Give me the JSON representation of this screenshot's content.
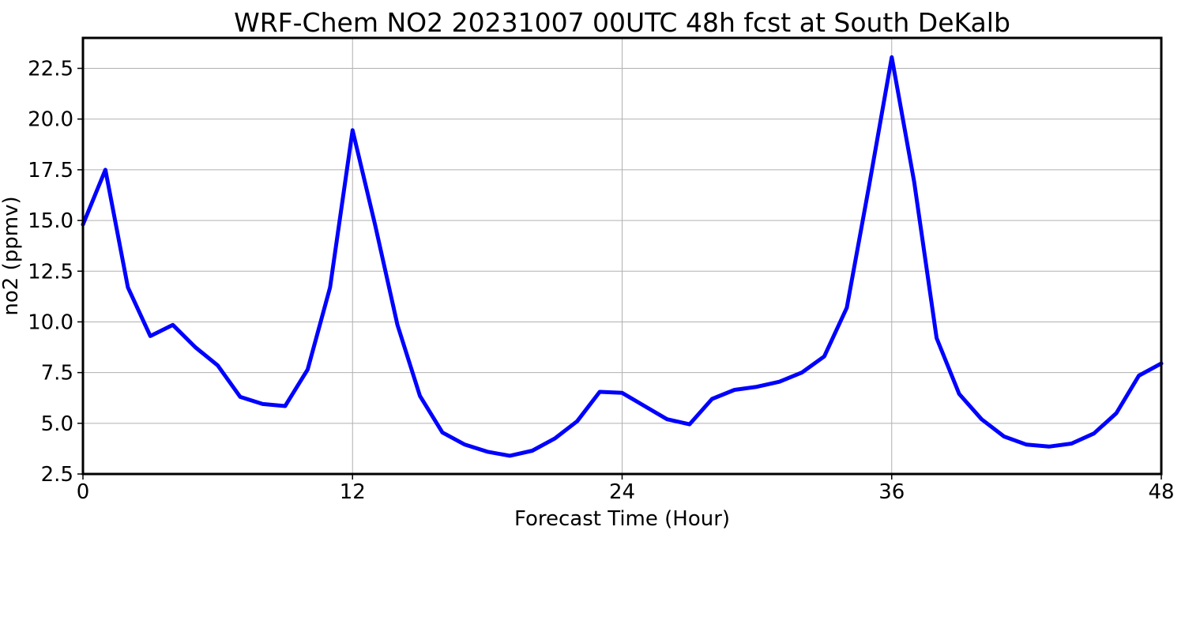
{
  "chart_data": {
    "type": "line",
    "title": "WRF-Chem NO2  20231007 00UTC 48h fcst at South DeKalb",
    "xlabel": "Forecast Time (Hour)",
    "ylabel": "no2  (ppmv)",
    "xlim": [
      0,
      48
    ],
    "ylim": [
      2.5,
      24.0
    ],
    "xticks": [
      0,
      12,
      24,
      36,
      48
    ],
    "xtick_labels": [
      "0",
      "12",
      "24",
      "36",
      "48"
    ],
    "yticks": [
      2.5,
      5.0,
      7.5,
      10.0,
      12.5,
      15.0,
      17.5,
      20.0,
      22.5
    ],
    "ytick_labels": [
      "2.5",
      "5.0",
      "7.5",
      "10.0",
      "12.5",
      "15.0",
      "17.5",
      "20.0",
      "22.5"
    ],
    "grid": true,
    "series": [
      {
        "color": "#0000ff",
        "x": [
          0,
          1,
          2,
          3,
          4,
          5,
          6,
          7,
          8,
          9,
          10,
          11,
          12,
          13,
          14,
          15,
          16,
          17,
          18,
          19,
          20,
          21,
          22,
          23,
          24,
          25,
          26,
          27,
          28,
          29,
          30,
          31,
          32,
          33,
          34,
          35,
          36,
          37,
          38,
          39,
          40,
          41,
          42,
          43,
          44,
          45,
          46,
          47,
          48
        ],
        "y": [
          14.8,
          17.5,
          11.7,
          9.3,
          9.85,
          8.75,
          7.85,
          6.3,
          5.95,
          5.85,
          7.65,
          11.7,
          19.45,
          14.8,
          9.85,
          6.35,
          4.55,
          3.95,
          3.6,
          3.4,
          3.65,
          4.25,
          5.1,
          6.55,
          6.5,
          5.85,
          5.2,
          4.95,
          6.2,
          6.65,
          6.8,
          7.05,
          7.5,
          8.3,
          10.7,
          16.75,
          23.05,
          16.9,
          9.2,
          6.45,
          5.2,
          4.35,
          3.95,
          3.85,
          4.0,
          4.5,
          5.5,
          7.35,
          7.95
        ]
      }
    ]
  }
}
